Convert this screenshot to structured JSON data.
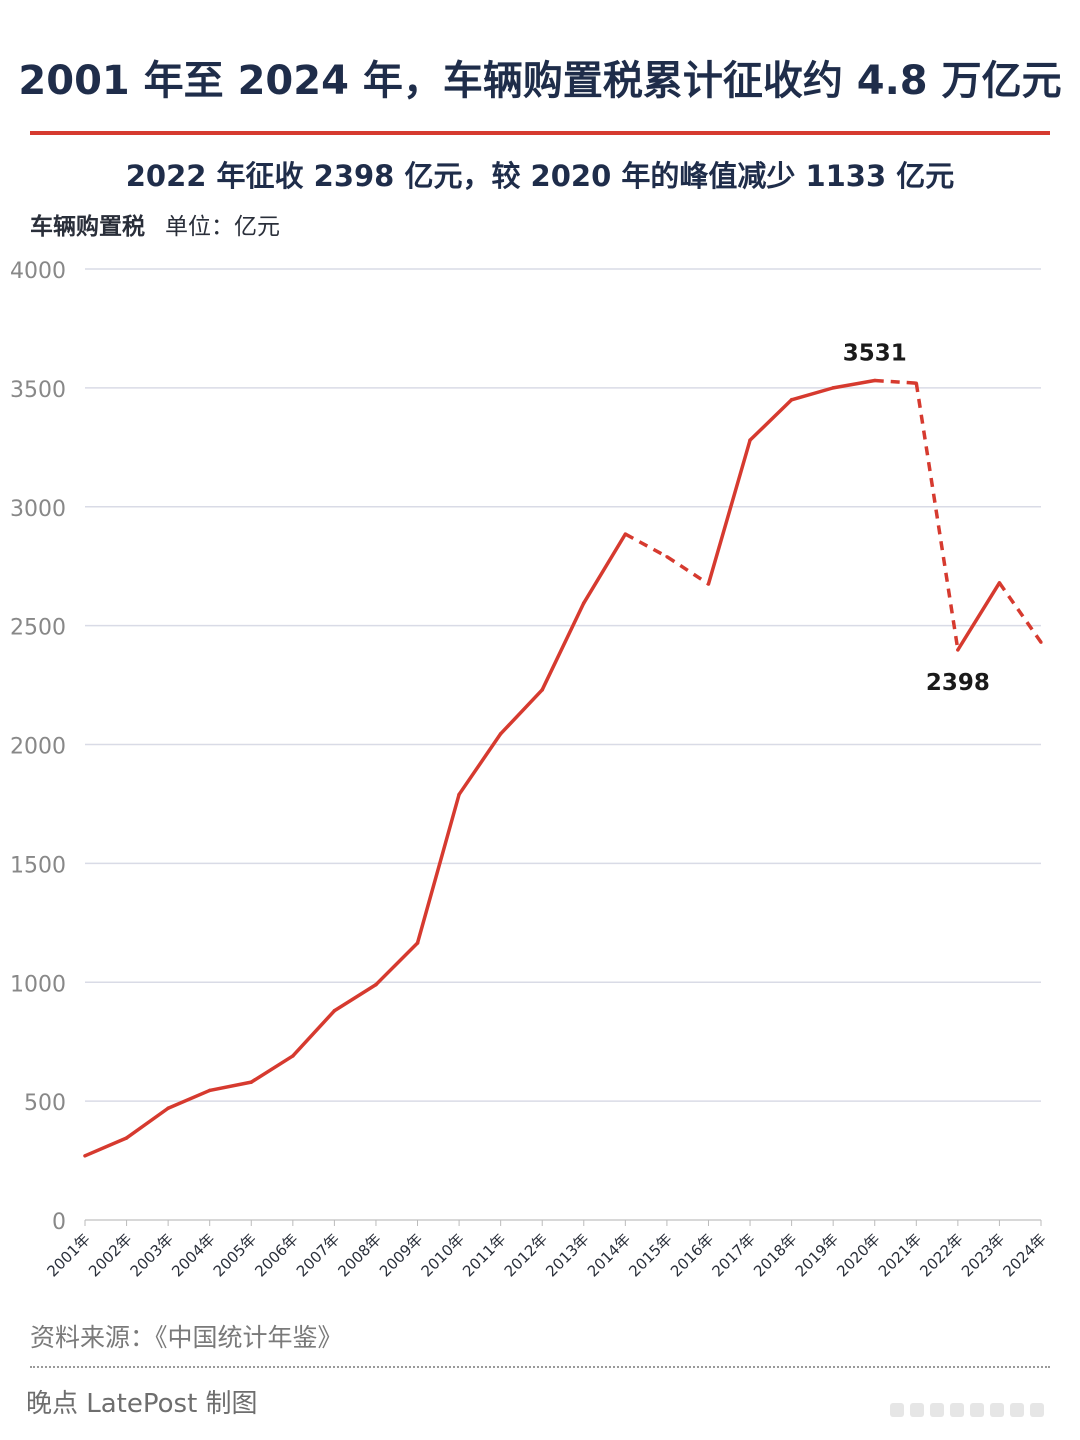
{
  "header": {
    "title": "2001 年至 2024 年，车辆购置税累计征收约 4.8 万亿元",
    "subtitle": "2022 年征收 2398 亿元，较 2020 年的峰值减少 1133 亿元",
    "series_label": "车辆购置税",
    "unit_label": "单位：亿元"
  },
  "footer": {
    "source": "资料来源：《中国统计年鉴》",
    "credit": "晚点 LatePost 制图"
  },
  "colors": {
    "line": "#d63a2f",
    "title": "#1f2d4a",
    "grid": "#d9dbe6",
    "axis_text": "#888888"
  },
  "chart_data": {
    "type": "line",
    "title": "2001 年至 2024 年，车辆购置税累计征收约 4.8 万亿元",
    "subtitle": "2022 年征收 2398 亿元，较 2020 年的峰值减少 1133 亿元",
    "ylabel": "车辆购置税",
    "unit": "单位：亿元",
    "x": [
      "2001年",
      "2002年",
      "2003年",
      "2004年",
      "2005年",
      "2006年",
      "2007年",
      "2008年",
      "2009年",
      "2010年",
      "2011年",
      "2012年",
      "2013年",
      "2014年",
      "2015年",
      "2016年",
      "2017年",
      "2018年",
      "2019年",
      "2020年",
      "2021年",
      "2022年",
      "2023年",
      "2024年"
    ],
    "series": [
      {
        "values": [
          270,
          345,
          470,
          545,
          580,
          690,
          880,
          990,
          1165,
          1790,
          2045,
          2230,
          2595,
          2885,
          2790,
          2675,
          3280,
          3450,
          3500,
          3531,
          3520,
          2398,
          2680,
          2430
        ],
        "dashed_segments": [
          [
            13,
            14
          ],
          [
            14,
            15
          ],
          [
            19,
            20
          ],
          [
            20,
            21
          ],
          [
            22,
            23
          ]
        ]
      }
    ],
    "annotations": [
      {
        "index": 19,
        "text": "3531"
      },
      {
        "index": 21,
        "text": "2398"
      }
    ],
    "ylim": [
      0,
      4000
    ],
    "yticks": [
      0,
      500,
      1000,
      1500,
      2000,
      2500,
      3000,
      3500,
      4000
    ],
    "grid": true
  }
}
